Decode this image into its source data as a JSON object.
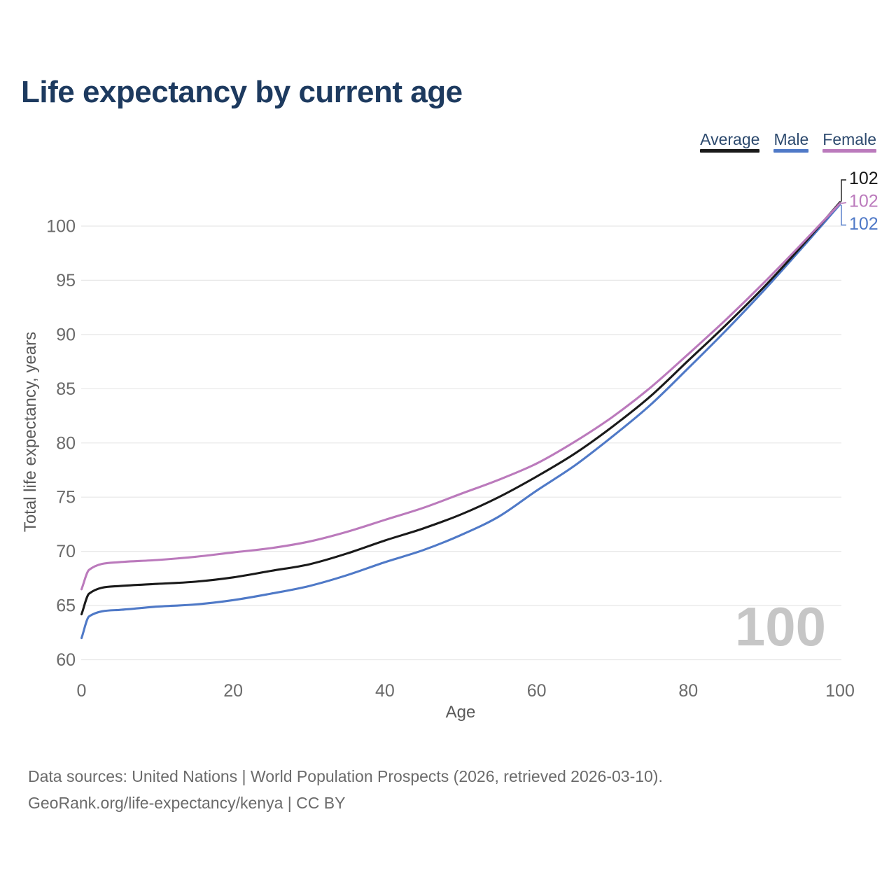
{
  "header": {
    "title": "Life expectancy by current age"
  },
  "chart_data": {
    "type": "line",
    "title": "Life expectancy by current age",
    "xlabel": "Age",
    "ylabel": "Total life expectancy, years",
    "xlim": [
      0,
      100
    ],
    "ylim": [
      60,
      103
    ],
    "x_ticks": [
      0,
      20,
      40,
      60,
      80,
      100
    ],
    "y_ticks": [
      60,
      65,
      70,
      75,
      80,
      85,
      90,
      95,
      100
    ],
    "grid": "horizontal",
    "legend_position": "top-right",
    "x": [
      0,
      1,
      5,
      10,
      15,
      20,
      25,
      30,
      35,
      40,
      45,
      50,
      55,
      60,
      65,
      70,
      75,
      80,
      85,
      90,
      95,
      100
    ],
    "series": [
      {
        "name": "Average",
        "color": "#1a1a1a",
        "end_label": "102",
        "values": [
          64.2,
          66.1,
          66.8,
          67.0,
          67.2,
          67.6,
          68.2,
          68.8,
          69.8,
          71.0,
          72.1,
          73.4,
          75.0,
          76.9,
          79.0,
          81.5,
          84.3,
          87.6,
          90.9,
          94.4,
          98.2,
          102.2
        ]
      },
      {
        "name": "Male",
        "color": "#4f79c7",
        "end_label": "102",
        "values": [
          62.0,
          64.0,
          64.6,
          64.9,
          65.1,
          65.5,
          66.1,
          66.8,
          67.8,
          69.0,
          70.1,
          71.5,
          73.2,
          75.6,
          77.9,
          80.6,
          83.5,
          86.9,
          90.4,
          94.1,
          98.0,
          102.0
        ]
      },
      {
        "name": "Female",
        "color": "#bb7abc",
        "end_label": "102",
        "values": [
          66.5,
          68.3,
          69.0,
          69.2,
          69.5,
          69.9,
          70.3,
          70.9,
          71.8,
          72.9,
          74.0,
          75.3,
          76.6,
          78.1,
          80.1,
          82.4,
          85.1,
          88.2,
          91.4,
          94.8,
          98.4,
          102.1
        ]
      }
    ]
  },
  "watermark": "100",
  "footer": {
    "line1": "Data sources: United Nations | World Population Prospects (2026, retrieved 2026-03-10).",
    "line2": "GeoRank.org/life-expectancy/kenya | CC BY"
  },
  "colors": {
    "title_text": "#1d3a5f",
    "legend_text": "#2d4a6e",
    "tick_label": "#6b6b6b",
    "axis_title": "#5a5a5a",
    "gridline": "#e7e7e7",
    "footer_text": "#6b6b6b",
    "watermark": "#c6c6c6",
    "background": "#ffffff"
  }
}
